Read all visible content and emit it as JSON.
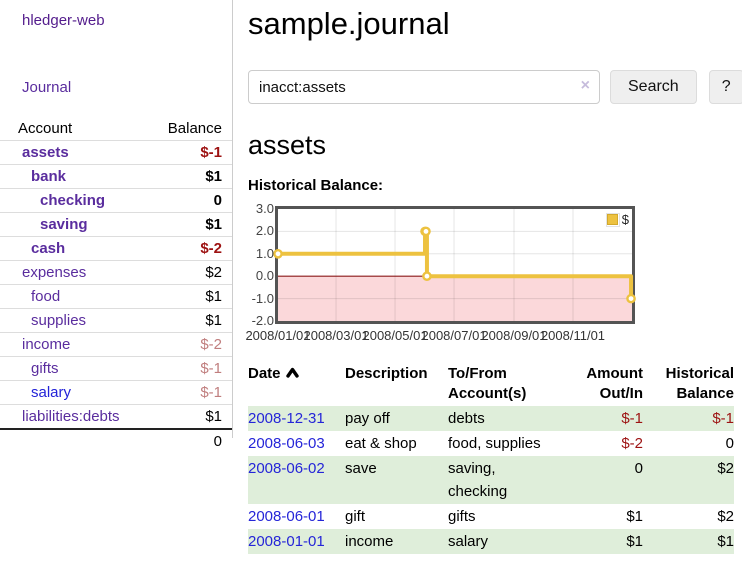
{
  "app": {
    "brand": "hledger-web",
    "nav_journal": "Journal"
  },
  "sidebar": {
    "accounts_header": {
      "account": "Account",
      "balance": "Balance"
    },
    "accounts": [
      {
        "name": "assets",
        "balance": "$-1",
        "indent": 1,
        "bold": true,
        "neg": "strong"
      },
      {
        "name": "bank",
        "balance": "$1",
        "indent": 2,
        "bold": true,
        "neg": "none"
      },
      {
        "name": "checking",
        "balance": "0",
        "indent": 3,
        "bold": true,
        "neg": "none"
      },
      {
        "name": "saving",
        "balance": "$1",
        "indent": 3,
        "bold": true,
        "neg": "none"
      },
      {
        "name": "cash",
        "balance": "$-2",
        "indent": 2,
        "bold": true,
        "neg": "strong"
      },
      {
        "name": "expenses",
        "balance": "$2",
        "indent": 1,
        "bold": false,
        "neg": "none"
      },
      {
        "name": "food",
        "balance": "$1",
        "indent": 2,
        "bold": false,
        "neg": "none"
      },
      {
        "name": "supplies",
        "balance": "$1",
        "indent": 2,
        "bold": false,
        "neg": "none"
      },
      {
        "name": "income",
        "balance": "$-2",
        "indent": 1,
        "bold": false,
        "neg": "muted"
      },
      {
        "name": "gifts",
        "balance": "$-1",
        "indent": 2,
        "bold": false,
        "neg": "muted"
      },
      {
        "name": "salary",
        "balance": "$-1",
        "indent": 2,
        "bold": false,
        "neg": "muted",
        "link_color": "blue"
      },
      {
        "name": "liabilities:debts",
        "balance": "$1",
        "indent": 1,
        "bold": false,
        "neg": "none"
      }
    ],
    "total": "0"
  },
  "header": {
    "title": "sample.journal"
  },
  "search": {
    "value": "inacct:assets",
    "clear_icon": "×",
    "button": "Search",
    "help_button": "?"
  },
  "account_page": {
    "title": "assets",
    "chart_label": "Historical Balance:"
  },
  "chart_data": {
    "type": "line",
    "step": true,
    "title": "Historical Balance:",
    "series": [
      {
        "name": "$",
        "color": "#edc240",
        "points": [
          [
            "2008-01-01",
            1
          ],
          [
            "2008-06-01",
            2
          ],
          [
            "2008-06-02",
            2
          ],
          [
            "2008-06-03",
            0
          ],
          [
            "2008-12-31",
            -1
          ]
        ]
      }
    ],
    "x_domain": [
      "2008-01-01",
      "2009-01-01"
    ],
    "ylim": [
      -2,
      3
    ],
    "y_ticks": [
      {
        "value": 3,
        "label": "3.0"
      },
      {
        "value": 2,
        "label": "2.0"
      },
      {
        "value": 1,
        "label": "1.0"
      },
      {
        "value": 0,
        "label": "0.0"
      },
      {
        "value": -1,
        "label": "-1.0"
      },
      {
        "value": -2,
        "label": "-2.0"
      }
    ],
    "x_ticks": [
      {
        "date": "2008-01-01",
        "label": "2008/01/01"
      },
      {
        "date": "2008-03-01",
        "label": "2008/03/01"
      },
      {
        "date": "2008-05-01",
        "label": "2008/05/01"
      },
      {
        "date": "2008-07-01",
        "label": "2008/07/01"
      },
      {
        "date": "2008-09-01",
        "label": "2008/09/01"
      },
      {
        "date": "2008-11-01",
        "label": "2008/11/01"
      }
    ],
    "legend_position": "top-right",
    "grid": true,
    "negative_region_fill": "#fbd8da",
    "zero_line_color": "#8b1a1a",
    "border_color": "#545454"
  },
  "register": {
    "columns": [
      {
        "key": "date",
        "label": "Date",
        "align": "left",
        "sortable": true,
        "sorted": "ascending"
      },
      {
        "key": "description",
        "label": "Description",
        "align": "left"
      },
      {
        "key": "accounts",
        "label": "To/From Account(s)",
        "align": "left"
      },
      {
        "key": "amount",
        "label": "Amount Out/In",
        "align": "right"
      },
      {
        "key": "balance",
        "label": "Historical Balance",
        "align": "right"
      }
    ],
    "rows": [
      {
        "date": "2008-12-31",
        "description": "pay off",
        "accounts": "debts",
        "amount": "$-1",
        "balance": "$-1",
        "amount_neg": true,
        "balance_neg": true
      },
      {
        "date": "2008-06-03",
        "description": "eat & shop",
        "accounts": "food, supplies",
        "amount": "$-2",
        "balance": "0",
        "amount_neg": true,
        "balance_neg": false
      },
      {
        "date": "2008-06-02",
        "description": "save",
        "accounts": "saving, checking",
        "amount": "0",
        "balance": "$2",
        "amount_neg": false,
        "balance_neg": false
      },
      {
        "date": "2008-06-01",
        "description": "gift",
        "accounts": "gifts",
        "amount": "$1",
        "balance": "$2",
        "amount_neg": false,
        "balance_neg": false
      },
      {
        "date": "2008-01-01",
        "description": "income",
        "accounts": "salary",
        "amount": "$1",
        "balance": "$1",
        "amount_neg": false,
        "balance_neg": false
      }
    ]
  },
  "colors": {
    "link_purple": "#5a2d9e",
    "link_blue": "#2525d8",
    "negative_strong": "#9d1212",
    "negative_muted": "#c07e7e",
    "row_stripe_green": "#dfeeda",
    "series_gold": "#edc240",
    "negative_region_pink": "#fbd8da",
    "zero_line_dark_red": "#8b1a1a"
  }
}
